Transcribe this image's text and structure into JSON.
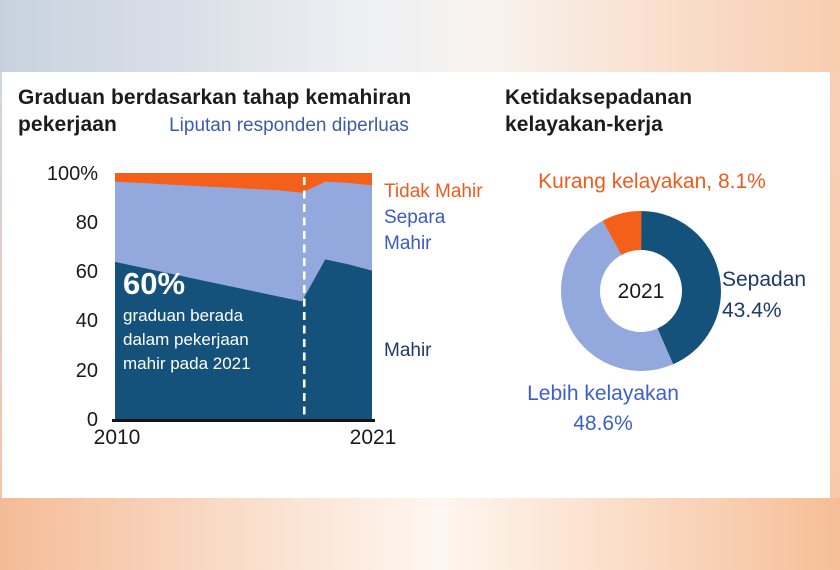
{
  "colors": {
    "mahir_dark_blue": "#15527B",
    "separa_light_blue": "#93A9DE",
    "tidak_orange": "#F4601A",
    "orange_text": "#EE5B1C",
    "navy_text": "#1F3A66",
    "royal_blue_text": "#3A5AC4",
    "lebih_blue_text": "#3C5FCB",
    "annotation_blue": "#3D5CA8"
  },
  "left_chart": {
    "title": "Graduan berdasarkan tahap kemahiran pekerjaan",
    "annotation": "Liputan responden diperluas",
    "callout": {
      "headline": "60%",
      "lines": [
        "graduan berada",
        "dalam pekerjaan",
        "mahir pada 2021"
      ]
    },
    "legend": {
      "tidak": "Tidak Mahir",
      "separa": "Separa Mahir",
      "mahir": "Mahir"
    }
  },
  "right_chart": {
    "title": "Ketidaksepadanan kelayakan-kerja",
    "kurang_label": "Kurang kelayakan, 8.1%",
    "sepadan_line1": "Sepadan",
    "sepadan_line2": "43.4%",
    "lebih_line1": "Lebih kelayakan",
    "lebih_line2": "48.6%",
    "center_label": "2021"
  },
  "chart_data": [
    {
      "type": "area",
      "stacked": true,
      "percent_stacked": true,
      "title": "Graduan berdasarkan tahap kemahiran pekerjaan",
      "annotation": "Liputan responden diperluas",
      "annotation_x": 2018.1,
      "x": [
        2010,
        2011,
        2012,
        2013,
        2014,
        2015,
        2016,
        2017,
        2018,
        2019,
        2020,
        2021
      ],
      "series": [
        {
          "name": "Mahir",
          "color": "#15527B",
          "values": [
            64,
            62,
            60,
            58,
            56,
            54,
            52,
            50,
            48,
            65,
            63,
            60.5
          ]
        },
        {
          "name": "Separa Mahir",
          "color": "#93A9DE",
          "values": [
            32.5,
            34,
            35.5,
            37,
            38.5,
            40,
            41.5,
            43,
            44,
            31.5,
            33,
            34.5
          ]
        },
        {
          "name": "Tidak Mahir",
          "color": "#F4601A",
          "values": [
            3.5,
            4,
            4.5,
            5,
            5.5,
            6,
            6.5,
            7,
            8,
            3.5,
            4,
            5
          ]
        }
      ],
      "ylim": [
        0,
        100
      ],
      "y_ticks": [
        "100%",
        "80",
        "60",
        "40",
        "20",
        "0"
      ],
      "x_ticks": [
        "2010",
        "2021"
      ],
      "grid": false,
      "legend_position": "right",
      "key_fact": "60% graduan berada dalam pekerjaan mahir pada 2021"
    },
    {
      "type": "pie",
      "donut": true,
      "title": "Ketidaksepadanan kelayakan-kerja",
      "center_label": "2021",
      "slices": [
        {
          "label": "Sepadan",
          "value": 43.4,
          "color": "#15527B"
        },
        {
          "label": "Lebih kelayakan",
          "value": 48.6,
          "color": "#93A9DE"
        },
        {
          "label": "Kurang kelayakan",
          "value": 8.1,
          "color": "#F4601A"
        }
      ],
      "start_angle_deg": 0,
      "direction": "clockwise"
    }
  ]
}
